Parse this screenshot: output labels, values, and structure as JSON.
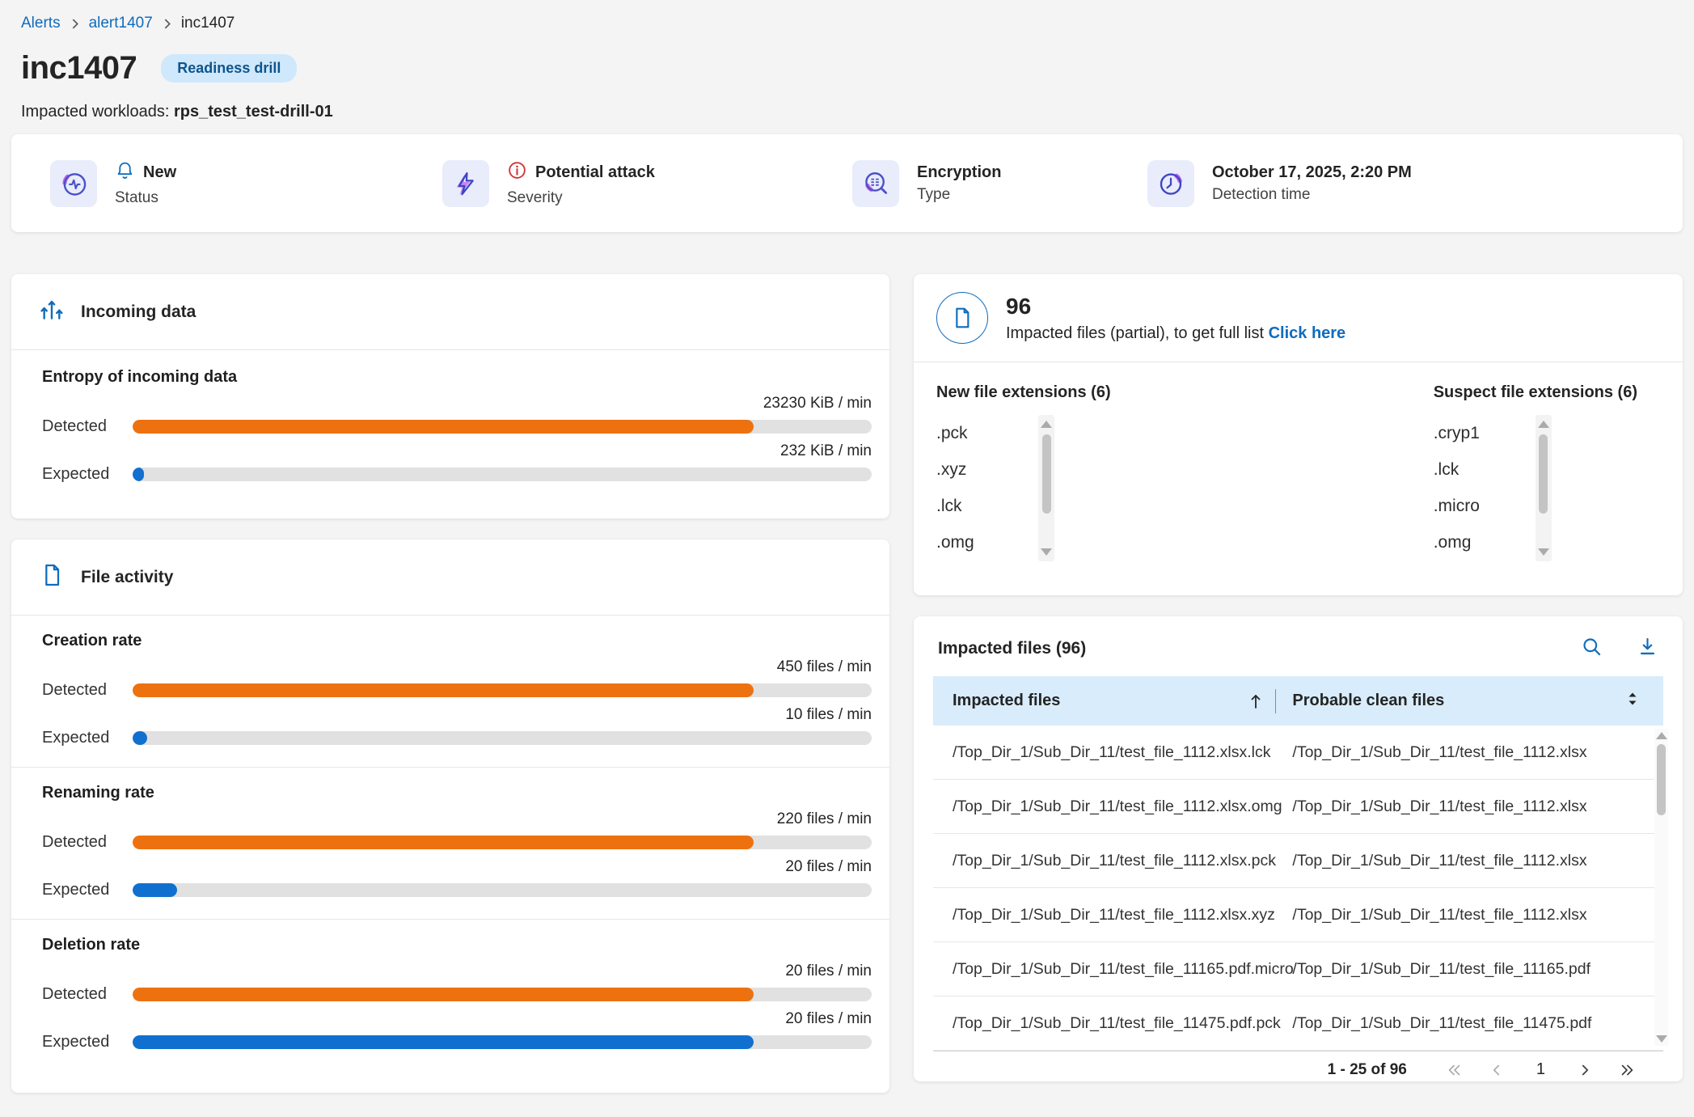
{
  "colors": {
    "accent_blue": "#0f6cbd",
    "bar_orange": "#ee7110",
    "bar_blue": "#1170cf",
    "bar_track": "#e1e1e1",
    "table_header_bg": "#d9ecfb",
    "badge_bg": "#cfe8fb",
    "badge_text": "#0f548c"
  },
  "breadcrumb": {
    "items": [
      "Alerts",
      "alert1407",
      "inc1407"
    ]
  },
  "header": {
    "title": "inc1407",
    "badge": "Readiness drill",
    "workloads_label": "Impacted workloads:",
    "workloads_value": "rps_test_test-drill-01"
  },
  "status_bar": {
    "cards": [
      {
        "value": "New",
        "label": "Status"
      },
      {
        "value": "Potential attack",
        "label": "Severity"
      },
      {
        "value": "Encryption",
        "label": "Type"
      },
      {
        "value": "October 17, 2025, 2:20 PM",
        "label": "Detection time"
      }
    ]
  },
  "panels": {
    "incoming_title": "Incoming data",
    "activity_title": "File activity"
  },
  "chart_data": [
    {
      "type": "bar",
      "panel": "Incoming data",
      "title": "Entropy of incoming data",
      "categories": [
        "Detected",
        "Expected"
      ],
      "values": [
        23230,
        232
      ],
      "unit": "KiB / min",
      "value_labels": [
        "23230 KiB / min",
        "232 KiB / min"
      ],
      "series_colors": [
        "#ee7110",
        "#1170cf"
      ],
      "fill_pct": [
        84,
        1.5
      ]
    },
    {
      "type": "bar",
      "panel": "File activity",
      "title": "Creation rate",
      "categories": [
        "Detected",
        "Expected"
      ],
      "values": [
        450,
        10
      ],
      "unit": "files / min",
      "value_labels": [
        "450 files / min",
        "10 files / min"
      ],
      "series_colors": [
        "#ee7110",
        "#1170cf"
      ],
      "fill_pct": [
        84,
        2
      ]
    },
    {
      "type": "bar",
      "panel": "File activity",
      "title": "Renaming rate",
      "categories": [
        "Detected",
        "Expected"
      ],
      "values": [
        220,
        20
      ],
      "unit": "files / min",
      "value_labels": [
        "220 files / min",
        "20 files / min"
      ],
      "series_colors": [
        "#ee7110",
        "#1170cf"
      ],
      "fill_pct": [
        84,
        6
      ]
    },
    {
      "type": "bar",
      "panel": "File activity",
      "title": "Deletion rate",
      "categories": [
        "Detected",
        "Expected"
      ],
      "values": [
        20,
        20
      ],
      "unit": "files / min",
      "value_labels": [
        "20 files / min",
        "20 files / min"
      ],
      "series_colors": [
        "#ee7110",
        "#1170cf"
      ],
      "fill_pct": [
        84,
        84
      ]
    }
  ],
  "impacted_summary": {
    "count": "96",
    "subtitle": "Impacted files (partial), to get full list",
    "link_label": "Click here",
    "new_extensions": {
      "title": "New file extensions (6)",
      "items": [
        ".pck",
        ".xyz",
        ".lck",
        ".omg"
      ]
    },
    "suspect_extensions": {
      "title": "Suspect file extensions (6)",
      "items": [
        ".cryp1",
        ".lck",
        ".micro",
        ".omg"
      ]
    }
  },
  "impacted_table": {
    "title": "Impacted files (96)",
    "columns": [
      "Impacted files",
      "Probable clean files"
    ],
    "rows": [
      {
        "impacted": "/Top_Dir_1/Sub_Dir_11/test_file_1112.xlsx.lck",
        "clean": "/Top_Dir_1/Sub_Dir_11/test_file_1112.xlsx"
      },
      {
        "impacted": "/Top_Dir_1/Sub_Dir_11/test_file_1112.xlsx.omg",
        "clean": "/Top_Dir_1/Sub_Dir_11/test_file_1112.xlsx"
      },
      {
        "impacted": "/Top_Dir_1/Sub_Dir_11/test_file_1112.xlsx.pck",
        "clean": "/Top_Dir_1/Sub_Dir_11/test_file_1112.xlsx"
      },
      {
        "impacted": "/Top_Dir_1/Sub_Dir_11/test_file_1112.xlsx.xyz",
        "clean": "/Top_Dir_1/Sub_Dir_11/test_file_1112.xlsx"
      },
      {
        "impacted": "/Top_Dir_1/Sub_Dir_11/test_file_11165.pdf.micro",
        "clean": "/Top_Dir_1/Sub_Dir_11/test_file_11165.pdf"
      },
      {
        "impacted": "/Top_Dir_1/Sub_Dir_11/test_file_11475.pdf.pck",
        "clean": "/Top_Dir_1/Sub_Dir_11/test_file_11475.pdf"
      }
    ],
    "pagination": {
      "range_label": "1 - 25 of 96",
      "current_page": "1"
    }
  }
}
